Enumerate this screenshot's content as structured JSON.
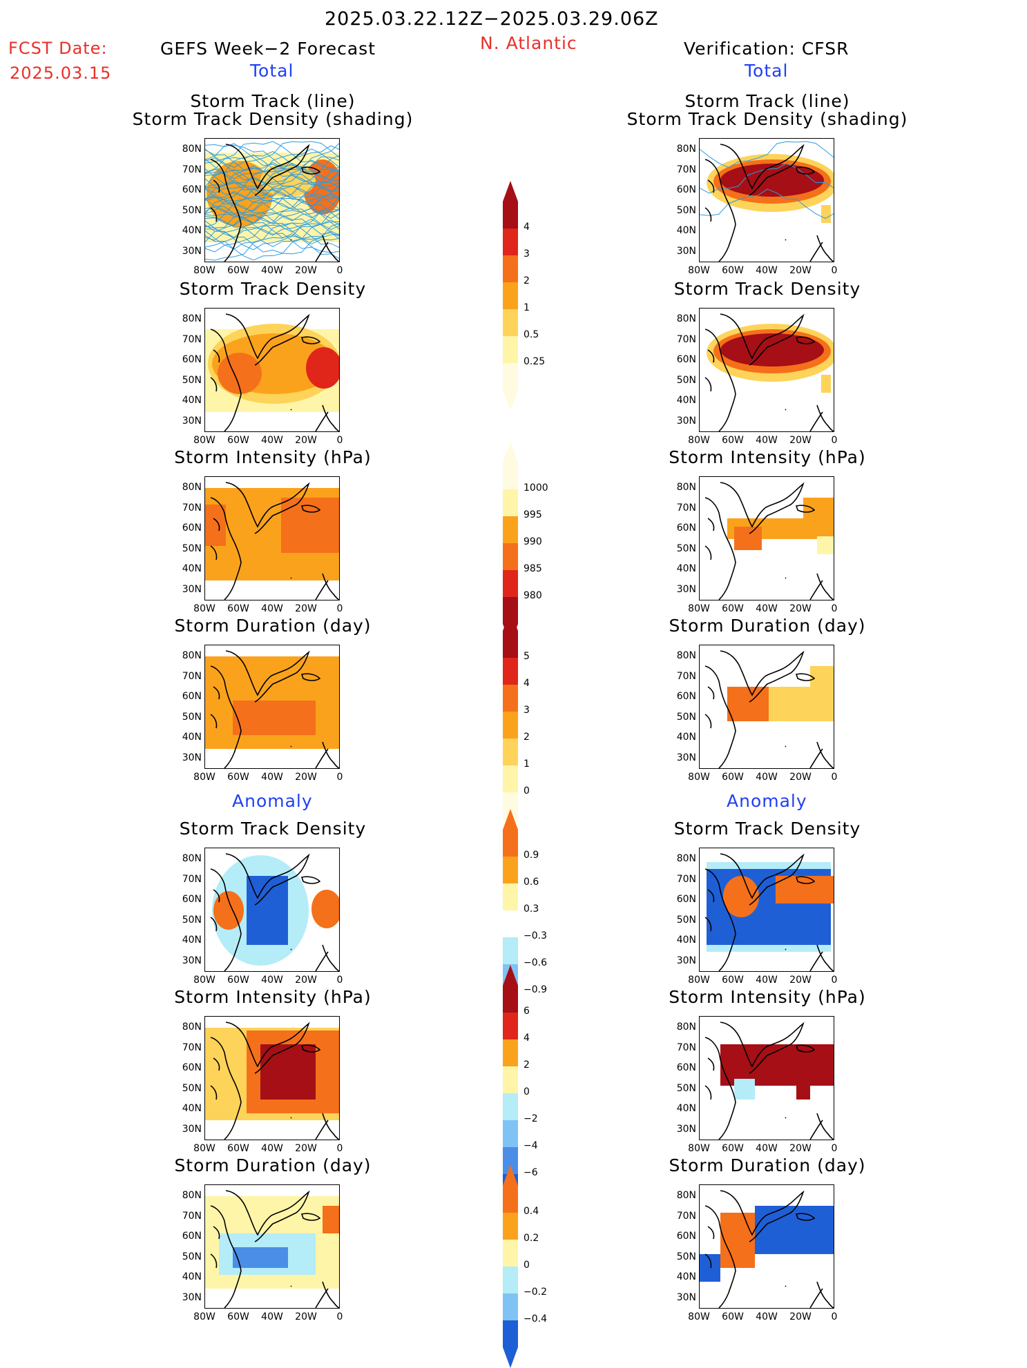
{
  "header": {
    "date_range": "2025.03.22.12Z−2025.03.29.06Z",
    "region": "N. Atlantic",
    "fcst_label": "FCST Date:",
    "fcst_date": "2025.03.15",
    "left_title": "GEFS Week−2 Forecast",
    "right_title": "Verification: CFSR",
    "total_label": "Total",
    "anomaly_label": "Anomaly"
  },
  "panel_titles": {
    "track_line": "Storm Track (line)",
    "track_density_shading": "Storm Track Density (shading)",
    "track_density": "Storm Track Density",
    "intensity": "Storm Intensity (hPa)",
    "duration": "Storm Duration (day)"
  },
  "axes": {
    "lat_ticks": [
      "80N",
      "70N",
      "60N",
      "50N",
      "40N",
      "30N"
    ],
    "lon_ticks": [
      "80W",
      "60W",
      "40W",
      "20W",
      "0"
    ]
  },
  "colorbars": {
    "density_total": [
      "4",
      "3",
      "2",
      "1",
      "0.5",
      "0.25"
    ],
    "intensity_total": [
      "1000",
      "995",
      "990",
      "985",
      "980"
    ],
    "duration_total": [
      "5",
      "4",
      "3",
      "2",
      "1",
      "0"
    ],
    "density_anom": [
      "0.9",
      "0.6",
      "0.3",
      "−0.3",
      "−0.6",
      "−0.9"
    ],
    "intensity_anom": [
      "6",
      "4",
      "2",
      "0",
      "−2",
      "−4",
      "−6"
    ],
    "duration_anom": [
      "0.4",
      "0.2",
      "0",
      "−0.2",
      "−0.4"
    ]
  },
  "colors": {
    "warm": [
      "#fff5a8",
      "#fdd35a",
      "#fba21c",
      "#f5701a",
      "#e0251a",
      "#a50f15"
    ],
    "cool": [
      "#b4ecf8",
      "#7fc3f4",
      "#4a8ee8",
      "#1f5fd6"
    ],
    "track_line": "#2d9be0",
    "header_red": "#e8302a",
    "header_blue": "#1f3ff5"
  }
}
